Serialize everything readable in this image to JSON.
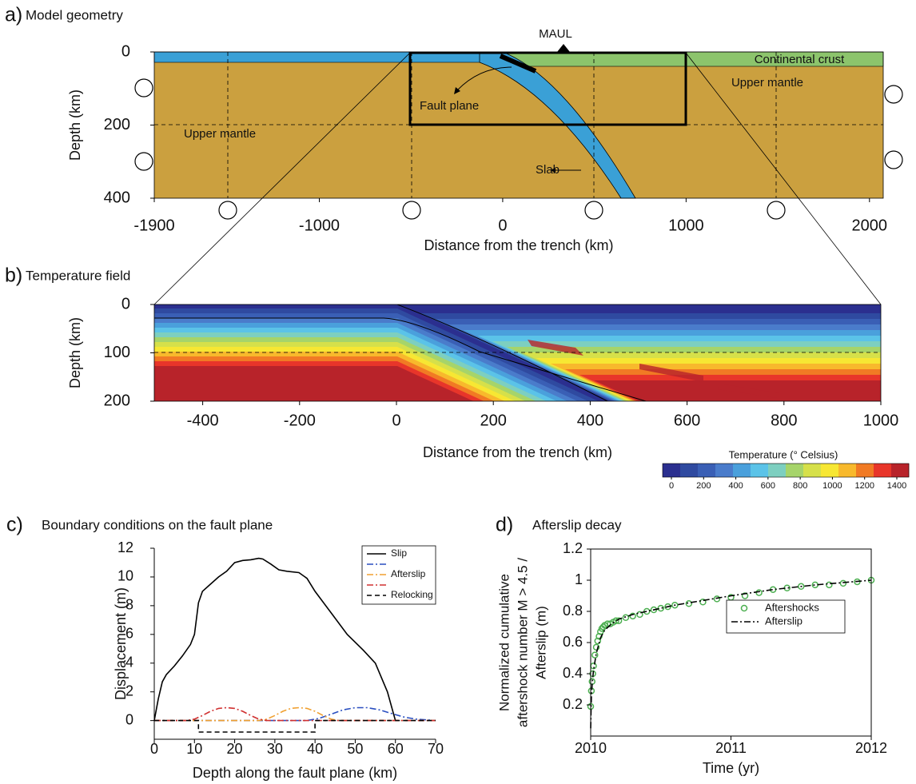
{
  "chart_data": [
    {
      "type": "geometry",
      "label": "a)",
      "title": "Model geometry",
      "xlabel": "Distance from the trench (km)",
      "ylabel": "Depth (km)",
      "xlim": [
        -1900,
        2075
      ],
      "ylim": [
        400,
        0
      ],
      "xticks": [
        -1900,
        -1000,
        0,
        1000,
        2000
      ],
      "yticks": [
        0,
        200,
        400
      ],
      "annotations": [
        "MAUL",
        "Continental crust",
        "Upper mantle",
        "Fault plane",
        "Upper mantle",
        "Slab"
      ],
      "colors": {
        "mantle": "#cba03f",
        "ocean_crust": "#3aa0d6",
        "continental_crust": "#8cc46c"
      }
    },
    {
      "type": "field",
      "label": "b)",
      "title": "Temperature field",
      "xlabel": "Distance from the trench (km)",
      "ylabel": "Depth (km)",
      "xlim": [
        -500,
        1000
      ],
      "ylim": [
        200,
        0
      ],
      "xticks": [
        -400,
        -200,
        0,
        200,
        400,
        600,
        800,
        1000
      ],
      "yticks": [
        0,
        100,
        200
      ],
      "colorbar": {
        "label": "Temperature (° Celsius)",
        "clim": [
          0,
          1400
        ],
        "ticks": [
          0,
          200,
          400,
          600,
          800,
          1000,
          1200,
          1400
        ],
        "colors": [
          "#2b2f8f",
          "#2f4aa0",
          "#3a5fb5",
          "#4a7ccb",
          "#4aa0dc",
          "#5bc3e8",
          "#7dcfc0",
          "#a6d46a",
          "#d6e04a",
          "#f7e733",
          "#f8b92c",
          "#f17a24",
          "#e8352a",
          "#b8232a"
        ]
      }
    },
    {
      "type": "line",
      "label": "c)",
      "title": "Boundary conditions on the fault plane",
      "xlabel": "Depth along the fault plane (km)",
      "ylabel": "Displacement (m)",
      "xlim": [
        0,
        70
      ],
      "ylim": [
        -1.3,
        12
      ],
      "xticks": [
        0,
        10,
        20,
        30,
        40,
        50,
        60,
        70
      ],
      "yticks": [
        0,
        2,
        4,
        6,
        8,
        10,
        12
      ],
      "legend": "upper right",
      "series": [
        {
          "name": "Slip",
          "color": "#000000",
          "style": "solid",
          "x": [
            0,
            1,
            2,
            3,
            5,
            7,
            9,
            10,
            11,
            12,
            14,
            16,
            18,
            20,
            22,
            24,
            26,
            27,
            29,
            31,
            33,
            36,
            38,
            40,
            44,
            48,
            52,
            55,
            58,
            60
          ],
          "values": [
            0,
            1.5,
            2.7,
            3.2,
            3.8,
            4.5,
            5.3,
            6,
            8.2,
            9,
            9.5,
            10,
            10.4,
            11,
            11.15,
            11.2,
            11.3,
            11.25,
            10.9,
            10.5,
            10.4,
            10.3,
            9.9,
            9,
            7.5,
            6,
            4.9,
            4,
            2,
            0
          ]
        },
        {
          "color": "#2a4fc0",
          "style": "dashdot",
          "x": [
            0,
            38,
            41,
            44,
            47,
            50,
            53,
            56,
            59,
            62,
            65,
            70
          ],
          "values": [
            0,
            0,
            0.15,
            0.45,
            0.75,
            0.9,
            0.9,
            0.75,
            0.5,
            0.25,
            0.1,
            0
          ]
        },
        {
          "name": "Afterslip",
          "color": "#f0a030",
          "style": "dashdot",
          "x": [
            0,
            26,
            28,
            30,
            32,
            34,
            36,
            38,
            40,
            42,
            44,
            46,
            70
          ],
          "values": [
            0,
            0,
            0.1,
            0.35,
            0.65,
            0.85,
            0.9,
            0.85,
            0.65,
            0.35,
            0.1,
            0,
            0
          ]
        },
        {
          "color": "#d03030",
          "style": "dashdot",
          "x": [
            0,
            8,
            10,
            12,
            14,
            16,
            18,
            20,
            22,
            24,
            26,
            28,
            40,
            70
          ],
          "values": [
            0,
            0,
            0.1,
            0.35,
            0.65,
            0.85,
            0.9,
            0.85,
            0.65,
            0.35,
            0.1,
            0,
            0,
            0
          ]
        },
        {
          "name": "Relocking",
          "color": "#000000",
          "style": "dashed",
          "x": [
            0,
            11,
            11,
            40,
            40,
            70
          ],
          "values": [
            0,
            0,
            -0.8,
            -0.8,
            0,
            0
          ]
        }
      ]
    },
    {
      "type": "line",
      "label": "d)",
      "title": "Afterslip decay",
      "xlabel": "Time (yr)",
      "ylabel": [
        "Normalized cumulative",
        "aftershock number M > 4.5 /",
        "Afterslip (m)"
      ],
      "xlim": [
        2010,
        2012
      ],
      "ylim": [
        0,
        1.2
      ],
      "xticks": [
        2010,
        2011,
        2012
      ],
      "yticks": [
        0.2,
        0.4,
        0.6,
        0.8,
        1,
        1.2
      ],
      "legend": "right",
      "series": [
        {
          "name": "Aftershocks",
          "color": "#4caf50",
          "style": "scatter",
          "x": [
            2010.0,
            2010.005,
            2010.01,
            2010.015,
            2010.02,
            2010.03,
            2010.04,
            2010.05,
            2010.06,
            2010.07,
            2010.08,
            2010.09,
            2010.1,
            2010.12,
            2010.14,
            2010.16,
            2010.18,
            2010.2,
            2010.25,
            2010.3,
            2010.35,
            2010.4,
            2010.45,
            2010.5,
            2010.55,
            2010.6,
            2010.7,
            2010.8,
            2010.9,
            2011.0,
            2011.1,
            2011.2,
            2011.3,
            2011.4,
            2011.5,
            2011.6,
            2011.7,
            2011.8,
            2011.9,
            2012.0
          ],
          "values": [
            0.19,
            0.29,
            0.35,
            0.4,
            0.45,
            0.52,
            0.57,
            0.61,
            0.64,
            0.67,
            0.69,
            0.7,
            0.71,
            0.72,
            0.72,
            0.73,
            0.74,
            0.74,
            0.76,
            0.77,
            0.78,
            0.8,
            0.81,
            0.82,
            0.83,
            0.84,
            0.85,
            0.86,
            0.88,
            0.89,
            0.9,
            0.92,
            0.94,
            0.95,
            0.96,
            0.97,
            0.97,
            0.98,
            0.99,
            1.0
          ]
        },
        {
          "name": "Afterslip",
          "color": "#000000",
          "style": "dashdot",
          "x": [
            2010,
            2010.002,
            2010.005,
            2010.01,
            2010.02,
            2010.04,
            2010.07,
            2010.1,
            2010.15,
            2010.2,
            2010.3,
            2010.4,
            2010.6,
            2010.8,
            2011,
            2011.3,
            2011.6,
            2012
          ],
          "values": [
            0.05,
            0.15,
            0.25,
            0.33,
            0.42,
            0.53,
            0.63,
            0.68,
            0.72,
            0.75,
            0.78,
            0.8,
            0.84,
            0.87,
            0.9,
            0.94,
            0.97,
            1.0
          ]
        }
      ]
    }
  ]
}
